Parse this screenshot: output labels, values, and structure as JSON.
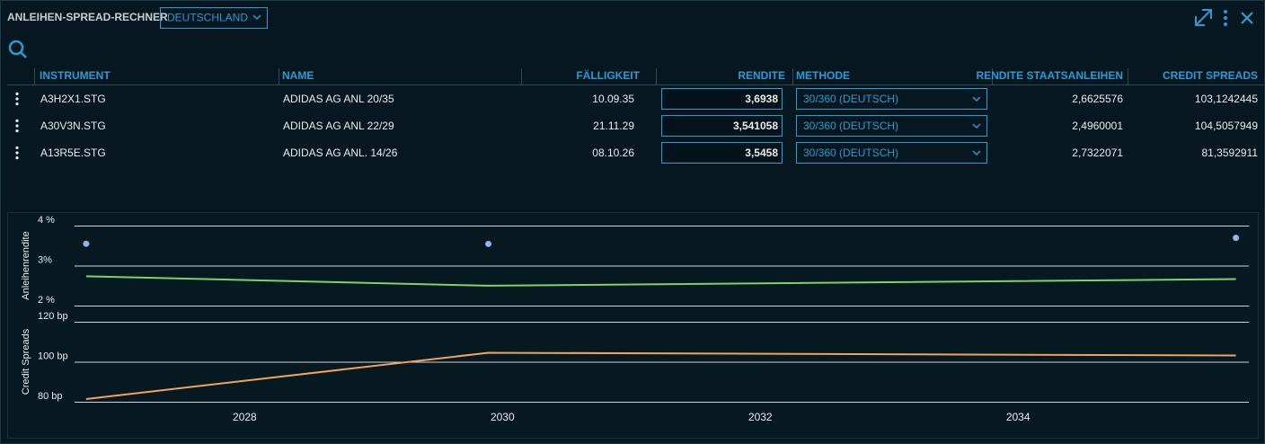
{
  "header": {
    "title": "ANLEIHEN-SPREAD-RECHNER",
    "country": "DEUTSCHLAND"
  },
  "table": {
    "columns": [
      "INSTRUMENT",
      "NAME",
      "FÄLLIGKEIT",
      "RENDITE",
      "METHODE",
      "RENDITE STAATSANLEIHEN",
      "CREDIT SPREADS"
    ],
    "rows": [
      [
        "A3H2X1.STG",
        "ADIDAS AG ANL 20/35",
        "10.09.35",
        "3,6938",
        "30/360 (DEUTSCH)",
        "2,6625576",
        "103,1242445"
      ],
      [
        "A30V3N.STG",
        "ADIDAS AG ANL 22/29",
        "21.11.29",
        "3,541058",
        "30/360 (DEUTSCH)",
        "2,4960001",
        "104,5057949"
      ],
      [
        "A13R5E.STG",
        "ADIDAS AG ANL. 14/26",
        "08.10.26",
        "3,5458",
        "30/360 (DEUTSCH)",
        "2,7322071",
        "81,3592911"
      ]
    ]
  },
  "chart_data": [
    {
      "type": "line",
      "y_label": "Anleihenrendite",
      "x": [
        2026.77,
        2029.89,
        2035.69
      ],
      "series": [
        {
          "type": "scatter",
          "color": "#8ab8e8",
          "values": [
            3.5458,
            3.541058,
            3.6938
          ]
        },
        {
          "type": "line",
          "color": "#7fd36b",
          "values": [
            2.7322071,
            2.4960001,
            2.6625576
          ]
        }
      ],
      "xlim": [
        2026.68,
        2035.79
      ],
      "ylim": [
        2,
        4
      ],
      "yticks": [
        {
          "value": 2,
          "label": "2 %"
        },
        {
          "value": 3,
          "label": "3%"
        },
        {
          "value": 4,
          "label": "4 %"
        }
      ],
      "grid": true
    },
    {
      "type": "line",
      "y_label": "Credit Spreads",
      "x": [
        2026.77,
        2029.89,
        2035.69
      ],
      "series": [
        {
          "type": "line",
          "color": "#f2a25e",
          "values": [
            81.3592911,
            104.5057949,
            103.1242445
          ]
        }
      ],
      "xlim": [
        2026.68,
        2035.79
      ],
      "xticks": [
        2028,
        2030,
        2032,
        2034
      ],
      "ylim": [
        80,
        120
      ],
      "yticks": [
        {
          "value": 80,
          "label": "80 bp"
        },
        {
          "value": 100,
          "label": "100 bp"
        },
        {
          "value": 120,
          "label": "120 bp"
        }
      ],
      "grid": true
    }
  ]
}
